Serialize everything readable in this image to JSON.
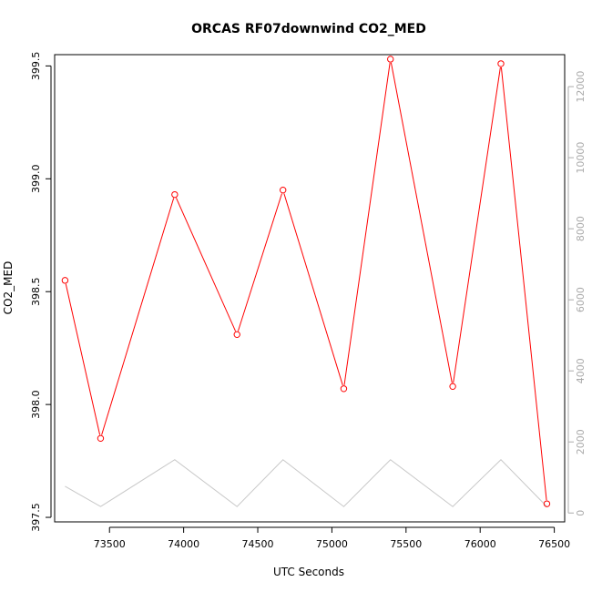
{
  "chart_data": {
    "type": "line",
    "title": "ORCAS RF07downwind CO2_MED",
    "xlabel": "UTC Seconds",
    "ylabel": "CO2_MED",
    "xlim": [
      73130,
      76570
    ],
    "ylim": [
      397.48,
      399.55
    ],
    "y2lim": [
      -250,
      12900
    ],
    "x_ticks": [
      73500,
      74000,
      74500,
      75000,
      75500,
      76000,
      76500
    ],
    "x_tick_labels": [
      "73500",
      "74000",
      "74500",
      "75000",
      "75500",
      "76000",
      "76500"
    ],
    "y_ticks": [
      397.5,
      398.0,
      398.5,
      399.0,
      399.5
    ],
    "y_tick_labels": [
      "397.5",
      "398.0",
      "398.5",
      "399.0",
      "399.5"
    ],
    "y2_ticks": [
      0,
      2000,
      4000,
      6000,
      8000,
      10000,
      12000
    ],
    "y2_tick_labels": [
      "0",
      "2000",
      "4000",
      "6000",
      "8000",
      "10000",
      "12000"
    ],
    "grid": false,
    "colors": {
      "primary": "#ff0000",
      "secondary": "#c8c8c8",
      "right_axis": "#aaaaaa"
    },
    "series": [
      {
        "axis": "left",
        "markers": "open-circle",
        "x": [
          73200,
          73440,
          73940,
          74360,
          74670,
          75080,
          75395,
          75815,
          76140,
          76450
        ],
        "y": [
          398.55,
          397.85,
          398.93,
          398.31,
          398.95,
          398.07,
          399.53,
          398.08,
          399.51,
          397.56
        ]
      },
      {
        "axis": "right",
        "markers": "none",
        "x": [
          73200,
          73440,
          73940,
          74360,
          74670,
          75080,
          75395,
          75815,
          76140,
          76450
        ],
        "y": [
          750,
          180,
          1500,
          180,
          1500,
          180,
          1500,
          180,
          1500,
          180
        ]
      }
    ]
  }
}
